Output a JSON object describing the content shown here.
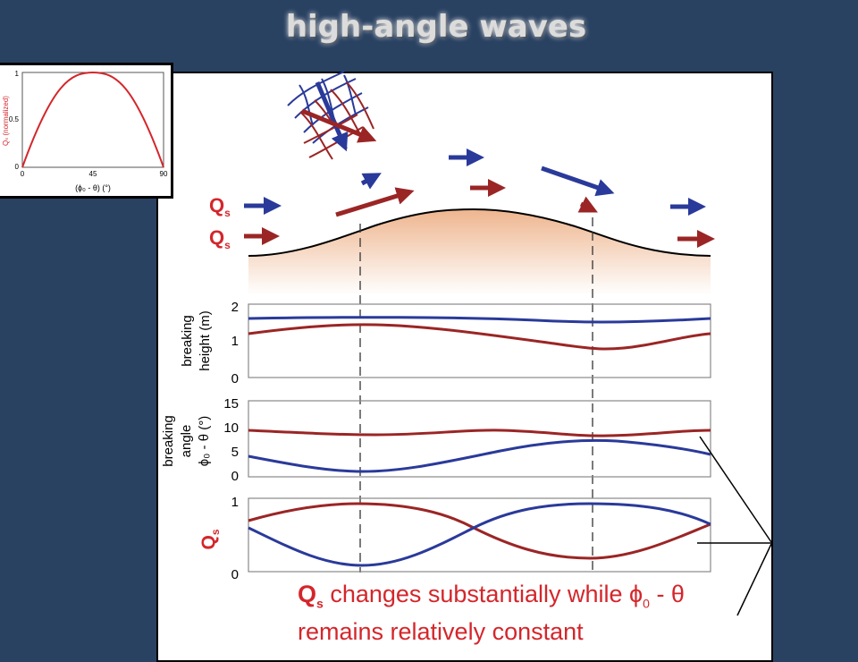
{
  "slide": {
    "title": "high-angle waves",
    "colors": {
      "background": "#2a4262",
      "blue": "#2a3a9a",
      "red": "#9b2525",
      "caption": "#d4262b",
      "sand": "#eeb58e"
    }
  },
  "inset": {
    "ylabel": "Qₛ (normalized)",
    "xlabel": "(ϕ₀ - θ) (°)",
    "yticks": [
      "0",
      "0.5",
      "1"
    ],
    "xticks": [
      "0",
      "45",
      "90"
    ]
  },
  "legend": {
    "qs_blue": "Q",
    "qs_red": "Q",
    "sub": "s"
  },
  "plots": {
    "height_ylabel_1": "breaking",
    "height_ylabel_2": "height (m)",
    "height_yticks": [
      "2",
      "1",
      "0"
    ],
    "angle_ylabel_1": "breaking",
    "angle_ylabel_2": "angle",
    "angle_ylabel_3": "ϕ₀ - θ (°)",
    "angle_yticks": [
      "15",
      "10",
      "5",
      "0"
    ],
    "qs_ylabel": "Q",
    "qs_sub": "s",
    "qs_yticks": [
      "1",
      "0"
    ]
  },
  "caption": {
    "qs": "Q",
    "qs_sub": "s",
    "line1_rest": " changes substantially while ϕ",
    "line1_sub": "0",
    "line1_end": " - θ",
    "line2": "remains relatively constant"
  }
}
